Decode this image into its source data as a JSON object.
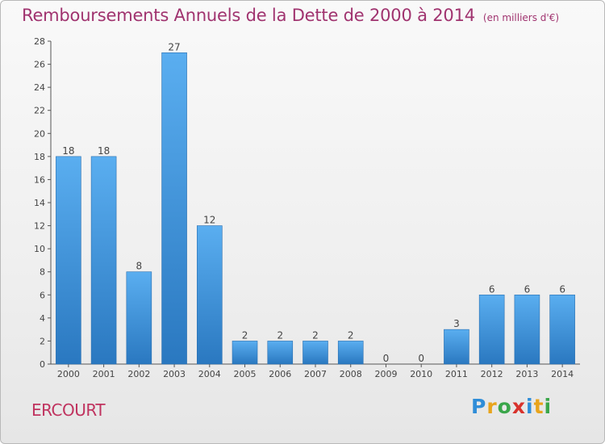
{
  "chart_data": {
    "type": "bar",
    "title": "Remboursements Annuels de la Dette de 2000 à 2014",
    "unit_note": "(en milliers d'€)",
    "categories": [
      "2000",
      "2001",
      "2002",
      "2003",
      "2004",
      "2005",
      "2006",
      "2007",
      "2008",
      "2009",
      "2010",
      "2011",
      "2012",
      "2013",
      "2014"
    ],
    "values": [
      18,
      18,
      8,
      27,
      12,
      2,
      2,
      2,
      2,
      0,
      0,
      3,
      6,
      6,
      6
    ],
    "ylim": [
      0,
      28
    ],
    "yticks": [
      0,
      2,
      4,
      6,
      8,
      10,
      12,
      14,
      16,
      18,
      20,
      22,
      24,
      26,
      28
    ],
    "grid": false,
    "bar_color": "#3a8fd4"
  },
  "footer": {
    "town": "ERCOURT",
    "logo_letters": [
      "P",
      "r",
      "o",
      "x",
      "i",
      "t",
      "i"
    ],
    "logo_colors": [
      "#2f8dd8",
      "#e8a41c",
      "#3aa64a",
      "#d8322c",
      "#2f8dd8",
      "#e8a41c",
      "#3aa64a"
    ]
  }
}
